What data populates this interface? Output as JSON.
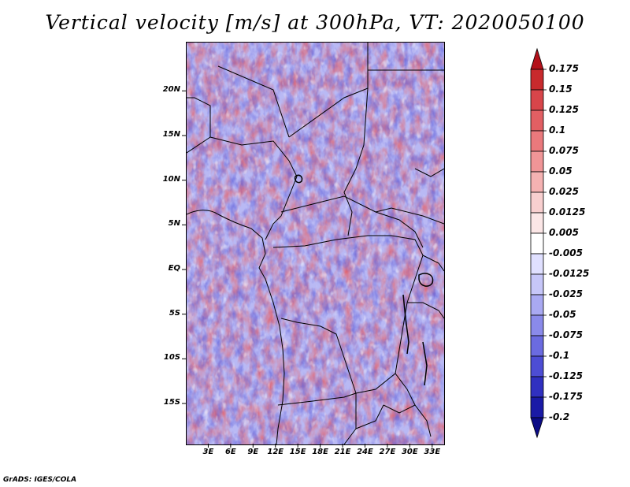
{
  "title": "Vertical velocity [m/s] at 300hPa, VT: 2020050100",
  "credit": "GrADS: IGES/COLA",
  "lat_labels": [
    "20N",
    "15N",
    "10N",
    "5N",
    "EQ",
    "5S",
    "10S",
    "15S"
  ],
  "lat_values": [
    20,
    15,
    10,
    5,
    0,
    -5,
    -10,
    -15
  ],
  "lon_labels": [
    "3E",
    "6E",
    "9E",
    "12E",
    "15E",
    "18E",
    "21E",
    "24E",
    "27E",
    "30E",
    "33E"
  ],
  "lon_values": [
    3,
    6,
    9,
    12,
    15,
    18,
    21,
    24,
    27,
    30,
    33
  ],
  "map_extent": {
    "lon_min": 0,
    "lon_max": 34.5,
    "lat_min": -19.5,
    "lat_max": 25.5
  },
  "colorbar": {
    "labels": [
      "0.175",
      "0.15",
      "0.125",
      "0.1",
      "0.075",
      "0.05",
      "0.025",
      "0.0125",
      "0.005",
      "-0.005",
      "-0.0125",
      "-0.025",
      "-0.05",
      "-0.075",
      "-0.1",
      "-0.125",
      "-0.175",
      "-0.2"
    ],
    "colors": [
      "#b3111a",
      "#c82a2d",
      "#d8454a",
      "#e25f63",
      "#ea797c",
      "#f09597",
      "#f5b2b2",
      "#f8cfcf",
      "#fbe6e6",
      "#ffffff",
      "#e0e0ff",
      "#c6c6f8",
      "#a9a9f2",
      "#8a8aea",
      "#6b6be0",
      "#4d4dd4",
      "#3030c0",
      "#1a1aa6",
      "#0c0c86"
    ]
  }
}
